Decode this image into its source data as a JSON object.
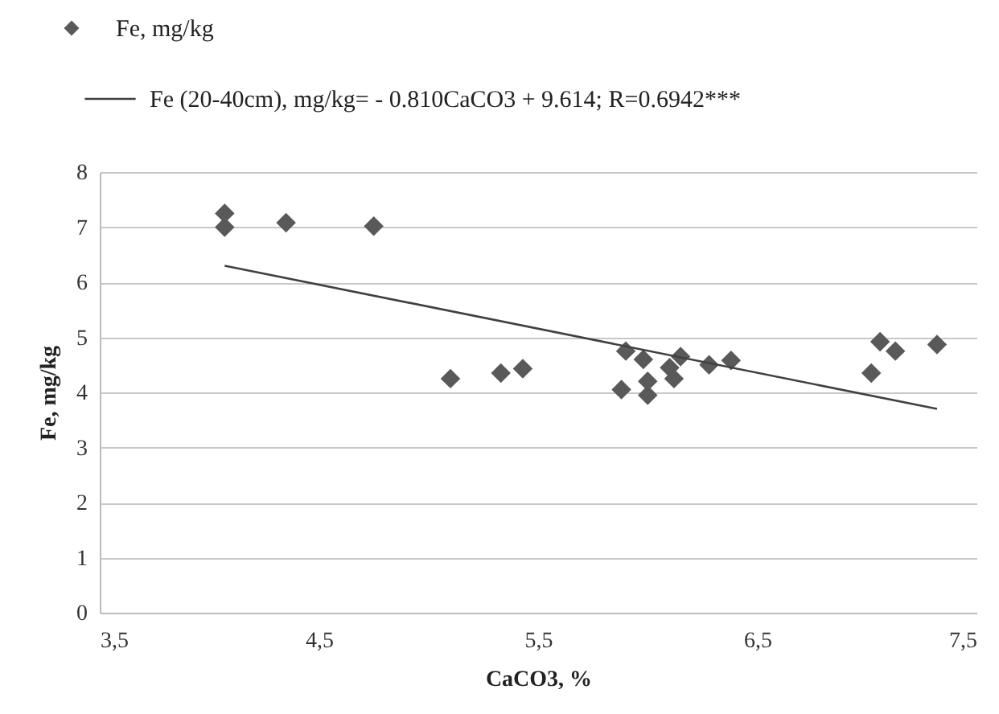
{
  "chart_data": {
    "type": "scatter",
    "xlabel": "CaCO3, %",
    "ylabel": "Fe, mg/kg",
    "xlim": [
      3.5,
      7.5
    ],
    "xticks": [
      {
        "value": 3.5,
        "label": "3,5"
      },
      {
        "value": 4.5,
        "label": "4,5"
      },
      {
        "value": 5.5,
        "label": "5,5"
      },
      {
        "value": 6.5,
        "label": "6,5"
      },
      {
        "value": 7.5,
        "label": "7,5"
      }
    ],
    "ylim": [
      0,
      8
    ],
    "yticks": [
      0,
      1,
      2,
      3,
      4,
      5,
      6,
      7,
      8
    ],
    "grid": "y",
    "legend": "top left",
    "series": [
      {
        "name": "Fe, mg/kg",
        "marker": "diamond",
        "color": "#595959",
        "x": [
          4.07,
          4.07,
          4.35,
          4.75,
          5.1,
          5.33,
          5.43,
          5.9,
          5.88,
          5.98,
          6.0,
          6.0,
          6.1,
          6.12,
          6.15,
          6.28,
          6.38,
          7.02,
          7.06,
          7.13,
          7.32
        ],
        "values": [
          7.25,
          7.0,
          7.08,
          7.02,
          4.25,
          4.35,
          4.43,
          4.75,
          4.05,
          4.6,
          3.95,
          4.2,
          4.45,
          4.25,
          4.65,
          4.5,
          4.58,
          4.35,
          4.92,
          4.75,
          4.87
        ]
      },
      {
        "name": "Fe (20-40cm), mg/kg= - 0.810CaCO3 + 9.614; R=0.6942***",
        "type": "line",
        "line_style": "solid",
        "color": "#404040",
        "x": [
          4.07,
          7.32
        ],
        "values": [
          6.3,
          3.7
        ]
      }
    ]
  }
}
